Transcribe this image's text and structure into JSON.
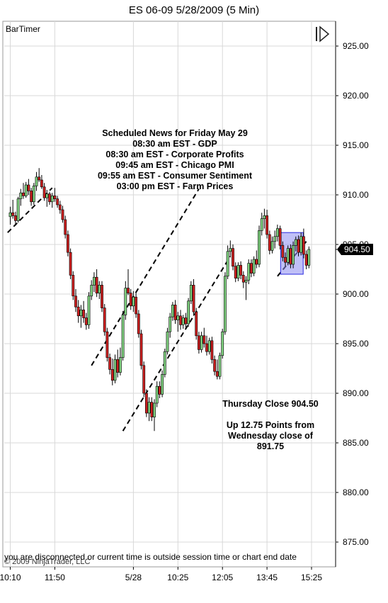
{
  "window": {
    "title": "ES 06-09  5/28/2009 (5 Min)",
    "indicator_label": "BarTimer",
    "status_message": "you are disconnected or current time is outside session time or chart end date",
    "copyright": "© 2009 NinjaTrader, LLC",
    "scroll_end_icon": "scroll-to-end-icon"
  },
  "chart_data": {
    "type": "candlestick",
    "title": "ES 06-09  5/28/2009 (5 Min)",
    "ylim": [
      872.5,
      927.5
    ],
    "y_ticks": [
      "925.00",
      "920.00",
      "915.00",
      "910.00",
      "905.00",
      "900.00",
      "895.00",
      "890.00",
      "885.00",
      "880.00",
      "875.00"
    ],
    "y_tick_values": [
      925,
      920,
      915,
      910,
      905,
      900,
      895,
      890,
      885,
      880,
      875
    ],
    "x_ticks": [
      "10:10",
      "11:50",
      "5/28",
      "10:25",
      "12:05",
      "13:45",
      "15:25"
    ],
    "x_tick_bars": [
      0,
      17,
      47,
      64,
      81,
      98,
      115
    ],
    "bar_count": 120,
    "current_price_label": "904.50",
    "current_price": 904.5,
    "up_color": "#7fd07f",
    "down_color": "#cc1f1f",
    "candles": [
      [
        907.8,
        908.8,
        907,
        908.2
      ],
      [
        908.2,
        909.5,
        907.6,
        907.9
      ],
      [
        907.9,
        908.3,
        906.9,
        907.4
      ],
      [
        907.4,
        909.8,
        907.2,
        909.6
      ],
      [
        909.6,
        910.6,
        908.9,
        910.2
      ],
      [
        910.2,
        911.2,
        909.6,
        909.9
      ],
      [
        909.9,
        911.3,
        909.7,
        911
      ],
      [
        911,
        911.6,
        910,
        910.4
      ],
      [
        910.4,
        910.7,
        908.9,
        909.3
      ],
      [
        909.3,
        911.2,
        909,
        910.9
      ],
      [
        910.9,
        912.3,
        910.4,
        911.8
      ],
      [
        911.8,
        912.7,
        911.3,
        911.5
      ],
      [
        911.5,
        912,
        910.6,
        910.8
      ],
      [
        910.8,
        911.2,
        909.4,
        909.7
      ],
      [
        909.7,
        910.5,
        908.8,
        910.1
      ],
      [
        910.1,
        910.3,
        909,
        909.3
      ],
      [
        909.3,
        910.2,
        908.7,
        909.9
      ],
      [
        909.9,
        910.7,
        909.3,
        909.6
      ],
      [
        909.6,
        909.9,
        908.7,
        909
      ],
      [
        909,
        909.4,
        908.1,
        908.5
      ],
      [
        908.5,
        908.9,
        907.2,
        907.5
      ],
      [
        907.5,
        907.9,
        905.6,
        906
      ],
      [
        906,
        906.4,
        903.8,
        904.2
      ],
      [
        904.2,
        904.6,
        901.5,
        901.9
      ],
      [
        901.9,
        902.3,
        899.4,
        899.8
      ],
      [
        899.8,
        900.5,
        898.2,
        898.7
      ],
      [
        898.7,
        899.4,
        897.1,
        897.8
      ],
      [
        897.8,
        898.9,
        896.6,
        898.4
      ],
      [
        898.4,
        899.3,
        897.1,
        897.6
      ],
      [
        897.6,
        898.1,
        896.4,
        896.9
      ],
      [
        896.9,
        900.2,
        896.5,
        899.8
      ],
      [
        899.8,
        901.4,
        899.4,
        900.9
      ],
      [
        900.9,
        902.2,
        900.2,
        901.7
      ],
      [
        901.7,
        902.5,
        899.7,
        900.1
      ],
      [
        900.1,
        901.3,
        899.5,
        900.9
      ],
      [
        900.9,
        901.3,
        898.2,
        898.6
      ],
      [
        898.6,
        899,
        895.8,
        896.2
      ],
      [
        896.2,
        896.6,
        893.2,
        893.6
      ],
      [
        893.6,
        894,
        891.9,
        892.4
      ],
      [
        892.4,
        893.5,
        890.8,
        891.3
      ],
      [
        891.3,
        893.9,
        891,
        893.4
      ],
      [
        893.4,
        894.4,
        891.6,
        892.1
      ],
      [
        892.1,
        894.6,
        891.8,
        893.6
      ],
      [
        893.6,
        898.3,
        893.3,
        897.9
      ],
      [
        897.9,
        901.3,
        897.4,
        900.6
      ],
      [
        900.6,
        902.5,
        899.9,
        900.1
      ],
      [
        900.1,
        900.5,
        898.4,
        898.8
      ],
      [
        898.8,
        900.3,
        898.2,
        899.7
      ],
      [
        899.7,
        900.1,
        897.6,
        898
      ],
      [
        898,
        898.4,
        895.6,
        896
      ],
      [
        896,
        896.4,
        892.4,
        892.8
      ],
      [
        892.8,
        893.2,
        889.6,
        890
      ],
      [
        890,
        890.4,
        887.6,
        888
      ],
      [
        888,
        889.6,
        887.2,
        889.1
      ],
      [
        889.1,
        889.6,
        887.2,
        887.6
      ],
      [
        887.6,
        889.4,
        886.2,
        889
      ],
      [
        889,
        891.2,
        888.6,
        890.7
      ],
      [
        890.7,
        891.2,
        889.5,
        889.9
      ],
      [
        889.9,
        892.3,
        889.6,
        891.9
      ],
      [
        891.9,
        894.5,
        891.6,
        894.2
      ],
      [
        894.2,
        896.6,
        893.9,
        896.2
      ],
      [
        896.2,
        898.1,
        895.6,
        897.7
      ],
      [
        897.7,
        899.2,
        897.3,
        898.9
      ],
      [
        898.9,
        899.4,
        897,
        897.4
      ],
      [
        897.4,
        898.2,
        896.2,
        897.8
      ],
      [
        897.8,
        898.4,
        896.4,
        896.9
      ],
      [
        896.9,
        897.9,
        896.5,
        897.6
      ],
      [
        897.6,
        898.1,
        896.6,
        897
      ],
      [
        897,
        899.6,
        896.7,
        899.3
      ],
      [
        899.3,
        901.3,
        899,
        900.9
      ],
      [
        900.9,
        901.5,
        897.8,
        898.2
      ],
      [
        898.2,
        898.6,
        895.4,
        895.8
      ],
      [
        895.8,
        896.2,
        894,
        894.4
      ],
      [
        894.4,
        896.2,
        894.1,
        895.8
      ],
      [
        895.8,
        896.6,
        894.6,
        895
      ],
      [
        895,
        895.8,
        893.8,
        894.2
      ],
      [
        894.2,
        895.6,
        893.9,
        895.3
      ],
      [
        895.3,
        895.7,
        893,
        893.4
      ],
      [
        893.4,
        893.8,
        891.8,
        892.2
      ],
      [
        892.2,
        893.4,
        891.4,
        891.7
      ],
      [
        891.7,
        894.1,
        891.4,
        893.8
      ],
      [
        893.8,
        896.5,
        893.5,
        896.2
      ],
      [
        896.2,
        902.2,
        895.9,
        901.8
      ],
      [
        901.8,
        904.9,
        901.5,
        904.3
      ],
      [
        904.3,
        905.4,
        903.8,
        904.6
      ],
      [
        904.6,
        905,
        902.4,
        902.8
      ],
      [
        902.8,
        903.2,
        901.2,
        901.6
      ],
      [
        901.6,
        903.2,
        901.3,
        902.9
      ],
      [
        902.9,
        903.3,
        901.5,
        901.9
      ],
      [
        901.9,
        902.3,
        900.6,
        901.2
      ],
      [
        901.2,
        901.8,
        899.4,
        901.4
      ],
      [
        901.4,
        903.5,
        901,
        903.1
      ],
      [
        903.1,
        903.5,
        901.7,
        902.1
      ],
      [
        902.1,
        903.8,
        901.8,
        903.5
      ],
      [
        903.5,
        904.4,
        902.6,
        903
      ],
      [
        903,
        906.9,
        902.7,
        906.4
      ],
      [
        906.4,
        908.2,
        905.9,
        907.6
      ],
      [
        907.6,
        908.6,
        906.6,
        907.9
      ],
      [
        907.9,
        908.5,
        905.6,
        906
      ],
      [
        906,
        906.4,
        904,
        904.4
      ],
      [
        904.4,
        905.8,
        904.1,
        905.3
      ],
      [
        905.3,
        906.4,
        904.6,
        905.8
      ],
      [
        905.8,
        907,
        905.3,
        906.6
      ],
      [
        906.6,
        906.9,
        904.5,
        904.9
      ],
      [
        904.9,
        905.3,
        903.3,
        903.7
      ],
      [
        903.7,
        904.2,
        902.8,
        903.2
      ],
      [
        903.2,
        904.9,
        902.9,
        904.6
      ],
      [
        904.6,
        905,
        902.6,
        903
      ],
      [
        903,
        905.3,
        902.6,
        904.9
      ],
      [
        904.9,
        905.8,
        904.3,
        905.5
      ],
      [
        905.5,
        905.9,
        903.8,
        904.2
      ],
      [
        904.2,
        906.2,
        903.9,
        905.8
      ],
      [
        905.8,
        906.6,
        903.6,
        904
      ],
      [
        904,
        904.4,
        902.5,
        902.9
      ],
      [
        902.9,
        904.8,
        902.6,
        904.5
      ]
    ],
    "trendlines": [
      {
        "from": [
          -1,
          906.2
        ],
        "to": [
          16,
          910.7
        ]
      },
      {
        "from": [
          31,
          892.8
        ],
        "to": [
          72,
          910.6
        ]
      },
      {
        "from": [
          43,
          886.2
        ],
        "to": [
          84,
          903.8
        ]
      },
      {
        "from": [
          102,
          901.8
        ],
        "to": [
          113,
          905.3
        ]
      }
    ],
    "highlight_box": {
      "from_bar": 104,
      "to_bar": 111,
      "low": 902.0,
      "high": 906.2
    },
    "annotations": {
      "news_title": "Scheduled News for Friday May 29",
      "news_items": [
        "08:30 am EST - GDP",
        "08:30 am EST - Corporate Profits",
        "09:45 am EST - Chicago PMI",
        "09:55 am EST - Consumer Sentiment",
        "03:00 pm EST - Farm Prices"
      ],
      "close_line1": "Thursday Close 904.50",
      "close_line2": "Up 12.75 Points from",
      "close_line3": "Wednesday close of",
      "close_line4": "891.75"
    }
  }
}
